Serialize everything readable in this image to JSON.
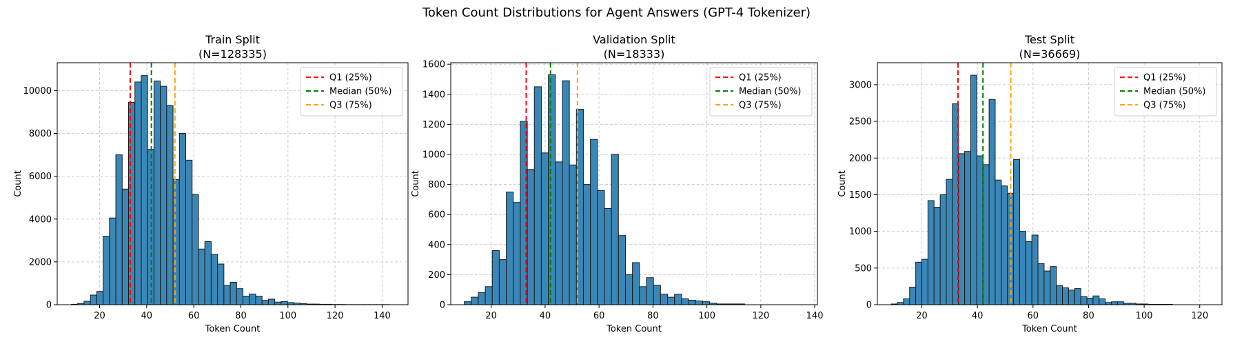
{
  "figure": {
    "suptitle": "Token Count Distributions for Agent Answers (GPT-4 Tokenizer)"
  },
  "colors": {
    "bar_fill": "#3a87b7",
    "bar_edge": "#1a1a1a",
    "grid": "#cccccc",
    "q1": "#ff0000",
    "median": "#008000",
    "q3": "#ffa500"
  },
  "chart_data": [
    {
      "type": "histogram",
      "title": "Train Split",
      "subtitle": "(N=128335)",
      "xlabel": "Token Count",
      "ylabel": "Count",
      "xlim": [
        2,
        151
      ],
      "ylim": [
        0,
        11300
      ],
      "xticks": [
        20,
        40,
        60,
        80,
        100,
        120,
        140
      ],
      "yticks": [
        0,
        2000,
        4000,
        6000,
        8000,
        10000
      ],
      "grid": true,
      "legend_position": "top-right",
      "bin_start": 8,
      "bin_width": 2.7,
      "counts": [
        20,
        60,
        160,
        450,
        620,
        3200,
        4050,
        7000,
        5400,
        9450,
        10400,
        10700,
        7250,
        10450,
        10200,
        9300,
        5850,
        8000,
        6750,
        5150,
        2600,
        2950,
        2350,
        1900,
        900,
        1050,
        750,
        400,
        500,
        400,
        200,
        260,
        120,
        150,
        100,
        80,
        50,
        30,
        30,
        20,
        20,
        10,
        10,
        5,
        5,
        5,
        5,
        5,
        5,
        5
      ],
      "vlines": [
        {
          "label": "Q1 (25%)",
          "x": 33,
          "color": "#ff0000"
        },
        {
          "label": "Median (50%)",
          "x": 42,
          "color": "#008000"
        },
        {
          "label": "Q3 (75%)",
          "x": 52,
          "color": "#ffa500"
        }
      ]
    },
    {
      "type": "histogram",
      "title": "Validation Split",
      "subtitle": "(N=18333)",
      "xlabel": "Token Count",
      "ylabel": "Count",
      "xlim": [
        5,
        141
      ],
      "ylim": [
        0,
        1610
      ],
      "xticks": [
        20,
        40,
        60,
        80,
        100,
        120,
        140
      ],
      "yticks": [
        0,
        200,
        400,
        600,
        800,
        1000,
        1200,
        1400,
        1600
      ],
      "grid": true,
      "legend_position": "top-right",
      "bin_start": 10,
      "bin_width": 2.6,
      "counts": [
        20,
        50,
        80,
        120,
        360,
        300,
        750,
        680,
        1220,
        900,
        1450,
        1010,
        1530,
        950,
        1490,
        930,
        1300,
        800,
        1100,
        760,
        640,
        1000,
        460,
        200,
        280,
        120,
        180,
        130,
        70,
        50,
        70,
        40,
        30,
        25,
        20,
        10,
        5,
        5,
        5,
        5
      ],
      "vlines": [
        {
          "label": "Q1 (25%)",
          "x": 33,
          "color": "#ff0000"
        },
        {
          "label": "Median (50%)",
          "x": 42,
          "color": "#008000"
        },
        {
          "label": "Q3 (75%)",
          "x": 52,
          "color": "#ffa500"
        }
      ]
    },
    {
      "type": "histogram",
      "title": "Test Split",
      "subtitle": "(N=36669)",
      "xlabel": "Token Count",
      "ylabel": "Count",
      "xlim": [
        4,
        128
      ],
      "ylim": [
        0,
        3300
      ],
      "xticks": [
        20,
        40,
        60,
        80,
        100,
        120
      ],
      "yticks": [
        0,
        500,
        1000,
        1500,
        2000,
        2500,
        3000
      ],
      "grid": true,
      "legend_position": "top-right",
      "bin_start": 9,
      "bin_width": 2.2,
      "counts": [
        10,
        30,
        80,
        240,
        580,
        620,
        1420,
        1330,
        1500,
        1710,
        2740,
        2060,
        2090,
        3130,
        2030,
        1910,
        2800,
        1700,
        1620,
        1520,
        1980,
        1000,
        860,
        950,
        560,
        460,
        520,
        260,
        230,
        200,
        220,
        110,
        90,
        120,
        80,
        30,
        40,
        40,
        20,
        20,
        10,
        10,
        5,
        5,
        5,
        5
      ],
      "vlines": [
        {
          "label": "Q1 (25%)",
          "x": 33,
          "color": "#ff0000"
        },
        {
          "label": "Median (50%)",
          "x": 42,
          "color": "#008000"
        },
        {
          "label": "Q3 (75%)",
          "x": 52,
          "color": "#ffa500"
        }
      ]
    }
  ]
}
